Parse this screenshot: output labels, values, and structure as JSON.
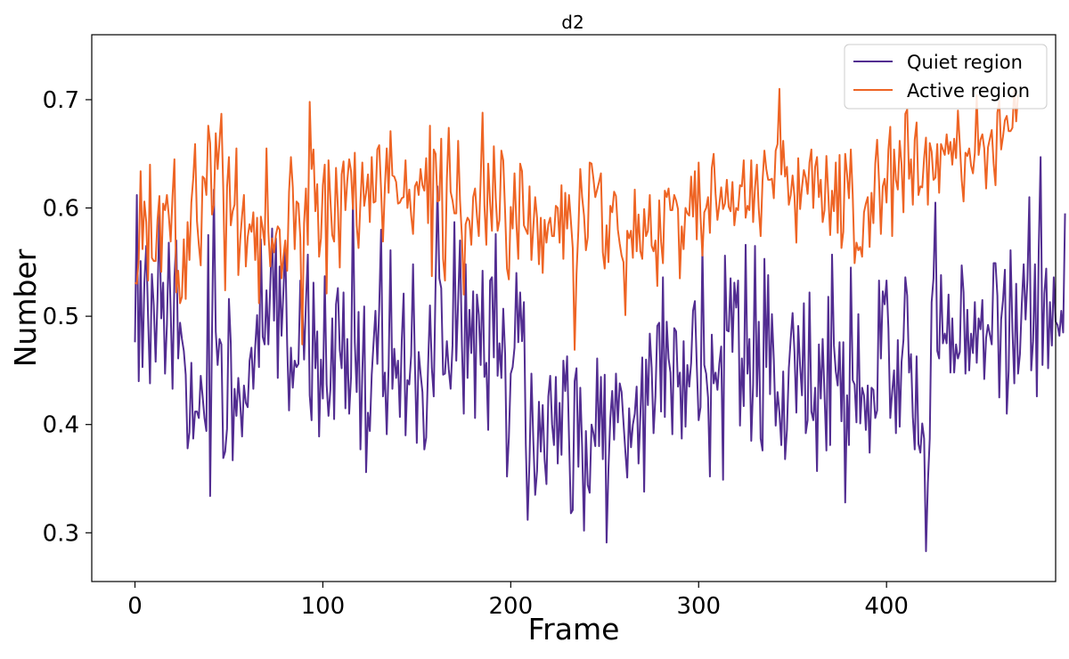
{
  "chart_data": {
    "type": "line",
    "title": "d2",
    "xlabel": "Frame",
    "ylabel": "Number",
    "xlim": [
      -23,
      490
    ],
    "ylim": [
      0.255,
      0.76
    ],
    "xticks": [
      0,
      100,
      200,
      300,
      400
    ],
    "yticks": [
      0.3,
      0.4,
      0.5,
      0.6,
      0.7
    ],
    "xtick_labels": [
      "0",
      "100",
      "200",
      "300",
      "400"
    ],
    "ytick_labels": [
      "0.3",
      "0.4",
      "0.5",
      "0.6",
      "0.7"
    ],
    "grid": false,
    "legend_position": "top-right",
    "x_start": 0,
    "x_step": 1,
    "series": [
      {
        "name": "Quiet region",
        "color": "#522D91",
        "values": [
          0.476,
          0.612,
          0.44,
          0.551,
          0.453,
          0.531,
          0.565,
          0.498,
          0.438,
          0.539,
          0.51,
          0.458,
          0.516,
          0.595,
          0.498,
          0.531,
          0.447,
          0.492,
          0.568,
          0.506,
          0.433,
          0.536,
          0.57,
          0.461,
          0.494,
          0.479,
          0.468,
          0.446,
          0.378,
          0.393,
          0.457,
          0.387,
          0.412,
          0.412,
          0.406,
          0.445,
          0.426,
          0.406,
          0.394,
          0.575,
          0.334,
          0.485,
          0.617,
          0.486,
          0.455,
          0.479,
          0.474,
          0.369,
          0.375,
          0.396,
          0.516,
          0.475,
          0.367,
          0.433,
          0.408,
          0.443,
          0.42,
          0.389,
          0.436,
          0.42,
          0.416,
          0.459,
          0.471,
          0.433,
          0.472,
          0.501,
          0.453,
          0.571,
          0.481,
          0.474,
          0.524,
          0.474,
          0.528,
          0.581,
          0.496,
          0.572,
          0.443,
          0.546,
          0.482,
          0.523,
          0.565,
          0.474,
          0.413,
          0.471,
          0.434,
          0.459,
          0.453,
          0.456,
          0.533,
          0.516,
          0.46,
          0.513,
          0.557,
          0.427,
          0.404,
          0.531,
          0.452,
          0.486,
          0.389,
          0.46,
          0.424,
          0.537,
          0.437,
          0.408,
          0.432,
          0.498,
          0.405,
          0.511,
          0.526,
          0.469,
          0.452,
          0.522,
          0.415,
          0.479,
          0.41,
          0.444,
          0.613,
          0.476,
          0.43,
          0.504,
          0.377,
          0.448,
          0.509,
          0.356,
          0.411,
          0.394,
          0.446,
          0.476,
          0.505,
          0.456,
          0.508,
          0.58,
          0.426,
          0.448,
          0.391,
          0.454,
          0.561,
          0.433,
          0.47,
          0.443,
          0.459,
          0.407,
          0.478,
          0.521,
          0.39,
          0.441,
          0.437,
          0.464,
          0.548,
          0.455,
          0.383,
          0.467,
          0.447,
          0.43,
          0.377,
          0.388,
          0.454,
          0.51,
          0.452,
          0.426,
          0.531,
          0.62,
          0.535,
          0.526,
          0.446,
          0.447,
          0.477,
          0.451,
          0.433,
          0.473,
          0.587,
          0.459,
          0.514,
          0.57,
          0.474,
          0.41,
          0.548,
          0.443,
          0.506,
          0.466,
          0.523,
          0.406,
          0.52,
          0.501,
          0.455,
          0.542,
          0.444,
          0.457,
          0.395,
          0.533,
          0.536,
          0.462,
          0.576,
          0.445,
          0.475,
          0.443,
          0.507,
          0.465,
          0.352,
          0.388,
          0.447,
          0.453,
          0.471,
          0.54,
          0.476,
          0.522,
          0.477,
          0.513,
          0.382,
          0.312,
          0.368,
          0.447,
          0.386,
          0.335,
          0.357,
          0.421,
          0.375,
          0.418,
          0.368,
          0.345,
          0.426,
          0.445,
          0.4,
          0.381,
          0.444,
          0.364,
          0.42,
          0.372,
          0.459,
          0.431,
          0.463,
          0.388,
          0.318,
          0.321,
          0.44,
          0.452,
          0.361,
          0.434,
          0.379,
          0.302,
          0.394,
          0.344,
          0.337,
          0.4,
          0.392,
          0.38,
          0.461,
          0.38,
          0.444,
          0.368,
          0.446,
          0.291,
          0.359,
          0.406,
          0.431,
          0.386,
          0.447,
          0.402,
          0.438,
          0.43,
          0.402,
          0.375,
          0.351,
          0.415,
          0.379,
          0.4,
          0.41,
          0.435,
          0.364,
          0.409,
          0.462,
          0.338,
          0.46,
          0.418,
          0.484,
          0.452,
          0.392,
          0.426,
          0.491,
          0.494,
          0.412,
          0.536,
          0.407,
          0.495,
          0.461,
          0.448,
          0.391,
          0.489,
          0.486,
          0.435,
          0.448,
          0.387,
          0.477,
          0.398,
          0.455,
          0.435,
          0.457,
          0.505,
          0.514,
          0.455,
          0.404,
          0.416,
          0.565,
          0.455,
          0.447,
          0.425,
          0.352,
          0.483,
          0.438,
          0.448,
          0.432,
          0.456,
          0.472,
          0.349,
          0.556,
          0.487,
          0.486,
          0.535,
          0.467,
          0.531,
          0.508,
          0.533,
          0.399,
          0.461,
          0.417,
          0.566,
          0.447,
          0.479,
          0.385,
          0.437,
          0.565,
          0.426,
          0.495,
          0.387,
          0.376,
          0.553,
          0.453,
          0.538,
          0.428,
          0.502,
          0.46,
          0.399,
          0.43,
          0.411,
          0.381,
          0.449,
          0.368,
          0.395,
          0.452,
          0.479,
          0.503,
          0.467,
          0.411,
          0.491,
          0.454,
          0.427,
          0.512,
          0.392,
          0.404,
          0.522,
          0.412,
          0.404,
          0.434,
          0.357,
          0.474,
          0.424,
          0.479,
          0.427,
          0.376,
          0.518,
          0.381,
          0.557,
          0.473,
          0.449,
          0.436,
          0.476,
          0.403,
          0.476,
          0.328,
          0.427,
          0.381,
          0.545,
          0.441,
          0.437,
          0.402,
          0.502,
          0.401,
          0.434,
          0.427,
          0.395,
          0.436,
          0.374,
          0.434,
          0.432,
          0.406,
          0.413,
          0.533,
          0.461,
          0.523,
          0.511,
          0.533,
          0.489,
          0.406,
          0.43,
          0.45,
          0.392,
          0.478,
          0.398,
          0.458,
          0.478,
          0.536,
          0.519,
          0.448,
          0.465,
          0.407,
          0.377,
          0.463,
          0.382,
          0.374,
          0.401,
          0.387,
          0.283,
          0.346,
          0.387,
          0.513,
          0.535,
          0.605,
          0.468,
          0.461,
          0.538,
          0.475,
          0.484,
          0.475,
          0.52,
          0.448,
          0.498,
          0.448,
          0.474,
          0.461,
          0.467,
          0.547,
          0.522,
          0.447,
          0.506,
          0.45,
          0.484,
          0.466,
          0.513,
          0.457,
          0.498,
          0.488,
          0.515,
          0.442,
          0.48,
          0.492,
          0.483,
          0.474,
          0.549,
          0.549,
          0.519,
          0.425,
          0.497,
          0.515,
          0.543,
          0.41,
          0.45,
          0.561,
          0.488,
          0.438,
          0.53,
          0.447,
          0.465,
          0.512,
          0.548,
          0.497,
          0.534,
          0.61,
          0.45,
          0.477,
          0.548,
          0.426,
          0.561,
          0.647,
          0.455,
          0.521,
          0.544,
          0.452,
          0.513,
          0.473,
          0.536,
          0.495,
          0.492,
          0.482,
          0.505,
          0.485,
          0.595
        ]
      },
      {
        "name": "Active region",
        "color": "#EE6424",
        "values": [
          0.531,
          0.53,
          0.553,
          0.634,
          0.562,
          0.606,
          0.587,
          0.533,
          0.64,
          0.554,
          0.551,
          0.551,
          0.589,
          0.611,
          0.541,
          0.604,
          0.598,
          0.612,
          0.593,
          0.569,
          0.611,
          0.645,
          0.522,
          0.542,
          0.512,
          0.518,
          0.571,
          0.516,
          0.587,
          0.552,
          0.605,
          0.627,
          0.659,
          0.588,
          0.566,
          0.547,
          0.629,
          0.627,
          0.612,
          0.676,
          0.66,
          0.594,
          0.603,
          0.669,
          0.636,
          0.662,
          0.687,
          0.617,
          0.524,
          0.619,
          0.647,
          0.584,
          0.597,
          0.603,
          0.655,
          0.538,
          0.57,
          0.593,
          0.612,
          0.546,
          0.573,
          0.585,
          0.578,
          0.596,
          0.552,
          0.591,
          0.512,
          0.592,
          0.581,
          0.566,
          0.655,
          0.578,
          0.546,
          0.572,
          0.559,
          0.575,
          0.583,
          0.58,
          0.535,
          0.555,
          0.57,
          0.542,
          0.615,
          0.647,
          0.619,
          0.562,
          0.606,
          0.604,
          0.573,
          0.474,
          0.586,
          0.618,
          0.566,
          0.698,
          0.636,
          0.654,
          0.597,
          0.622,
          0.555,
          0.572,
          0.621,
          0.64,
          0.521,
          0.644,
          0.608,
          0.575,
          0.569,
          0.637,
          0.6,
          0.545,
          0.631,
          0.643,
          0.598,
          0.625,
          0.645,
          0.634,
          0.599,
          0.651,
          0.584,
          0.563,
          0.605,
          0.642,
          0.602,
          0.614,
          0.631,
          0.587,
          0.647,
          0.605,
          0.606,
          0.654,
          0.658,
          0.616,
          0.569,
          0.619,
          0.655,
          0.614,
          0.671,
          0.63,
          0.629,
          0.624,
          0.604,
          0.605,
          0.609,
          0.61,
          0.644,
          0.6,
          0.617,
          0.593,
          0.576,
          0.62,
          0.624,
          0.612,
          0.636,
          0.621,
          0.616,
          0.646,
          0.586,
          0.676,
          0.537,
          0.654,
          0.65,
          0.606,
          0.607,
          0.664,
          0.553,
          0.533,
          0.627,
          0.674,
          0.615,
          0.607,
          0.595,
          0.595,
          0.662,
          0.607,
          0.574,
          0.52,
          0.585,
          0.591,
          0.588,
          0.566,
          0.61,
          0.618,
          0.593,
          0.574,
          0.627,
          0.688,
          0.602,
          0.566,
          0.641,
          0.605,
          0.579,
          0.657,
          0.609,
          0.579,
          0.589,
          0.653,
          0.644,
          0.596,
          0.544,
          0.534,
          0.601,
          0.581,
          0.632,
          0.586,
          0.553,
          0.641,
          0.634,
          0.584,
          0.58,
          0.576,
          0.62,
          0.552,
          0.582,
          0.61,
          0.591,
          0.548,
          0.591,
          0.54,
          0.589,
          0.568,
          0.585,
          0.591,
          0.574,
          0.574,
          0.602,
          0.6,
          0.568,
          0.621,
          0.553,
          0.614,
          0.581,
          0.612,
          0.588,
          0.563,
          0.469,
          0.539,
          0.58,
          0.636,
          0.61,
          0.593,
          0.561,
          0.573,
          0.642,
          0.641,
          0.627,
          0.61,
          0.617,
          0.624,
          0.632,
          0.559,
          0.544,
          0.584,
          0.55,
          0.602,
          0.596,
          0.615,
          0.611,
          0.58,
          0.567,
          0.556,
          0.55,
          0.501,
          0.579,
          0.572,
          0.579,
          0.554,
          0.617,
          0.56,
          0.594,
          0.56,
          0.553,
          0.599,
          0.574,
          0.579,
          0.612,
          0.565,
          0.56,
          0.57,
          0.528,
          0.607,
          0.569,
          0.549,
          0.616,
          0.61,
          0.618,
          0.598,
          0.598,
          0.612,
          0.607,
          0.599,
          0.535,
          0.583,
          0.562,
          0.6,
          0.595,
          0.593,
          0.629,
          0.592,
          0.634,
          0.571,
          0.642,
          0.592,
          0.556,
          0.596,
          0.6,
          0.61,
          0.577,
          0.637,
          0.65,
          0.613,
          0.589,
          0.603,
          0.619,
          0.599,
          0.604,
          0.626,
          0.601,
          0.597,
          0.624,
          0.584,
          0.6,
          0.598,
          0.621,
          0.62,
          0.644,
          0.591,
          0.602,
          0.598,
          0.644,
          0.587,
          0.619,
          0.64,
          0.599,
          0.574,
          0.625,
          0.653,
          0.636,
          0.626,
          0.626,
          0.627,
          0.609,
          0.653,
          0.659,
          0.71,
          0.631,
          0.662,
          0.629,
          0.638,
          0.603,
          0.612,
          0.63,
          0.611,
          0.568,
          0.646,
          0.599,
          0.619,
          0.635,
          0.628,
          0.613,
          0.642,
          0.654,
          0.6,
          0.638,
          0.647,
          0.61,
          0.626,
          0.587,
          0.598,
          0.648,
          0.613,
          0.575,
          0.616,
          0.597,
          0.642,
          0.577,
          0.649,
          0.563,
          0.578,
          0.65,
          0.631,
          0.609,
          0.654,
          0.612,
          0.549,
          0.568,
          0.561,
          0.564,
          0.555,
          0.596,
          0.604,
          0.61,
          0.564,
          0.614,
          0.586,
          0.641,
          0.663,
          0.625,
          0.576,
          0.62,
          0.627,
          0.605,
          0.654,
          0.675,
          0.574,
          0.654,
          0.626,
          0.617,
          0.662,
          0.64,
          0.596,
          0.687,
          0.691,
          0.627,
          0.645,
          0.603,
          0.663,
          0.679,
          0.612,
          0.62,
          0.619,
          0.646,
          0.665,
          0.603,
          0.66,
          0.652,
          0.626,
          0.628,
          0.659,
          0.614,
          0.659,
          0.654,
          0.649,
          0.668,
          0.65,
          0.661,
          0.64,
          0.664,
          0.646,
          0.69,
          0.659,
          0.626,
          0.606,
          0.651,
          0.648,
          0.655,
          0.639,
          0.632,
          0.651,
          0.704,
          0.649,
          0.663,
          0.668,
          0.655,
          0.618,
          0.656,
          0.664,
          0.672,
          0.641,
          0.621,
          0.688,
          0.699,
          0.654,
          0.666,
          0.681,
          0.685,
          0.671,
          0.671,
          0.674,
          0.711,
          0.68,
          0.705
        ]
      }
    ]
  }
}
